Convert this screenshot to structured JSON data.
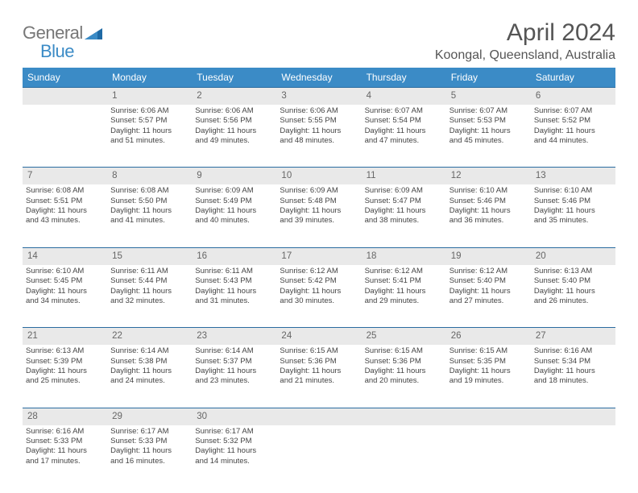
{
  "logo": {
    "general": "General",
    "blue": "Blue"
  },
  "title": "April 2024",
  "location": "Koongal, Queensland, Australia",
  "colors": {
    "header_bg": "#3b8bc6",
    "daynum_bg": "#e9e9e9",
    "rule": "#2a6ca0"
  },
  "day_headers": [
    "Sunday",
    "Monday",
    "Tuesday",
    "Wednesday",
    "Thursday",
    "Friday",
    "Saturday"
  ],
  "weeks": [
    {
      "nums": [
        "",
        "1",
        "2",
        "3",
        "4",
        "5",
        "6"
      ],
      "cells": [
        null,
        {
          "sr": "Sunrise: 6:06 AM",
          "ss": "Sunset: 5:57 PM",
          "d1": "Daylight: 11 hours",
          "d2": "and 51 minutes."
        },
        {
          "sr": "Sunrise: 6:06 AM",
          "ss": "Sunset: 5:56 PM",
          "d1": "Daylight: 11 hours",
          "d2": "and 49 minutes."
        },
        {
          "sr": "Sunrise: 6:06 AM",
          "ss": "Sunset: 5:55 PM",
          "d1": "Daylight: 11 hours",
          "d2": "and 48 minutes."
        },
        {
          "sr": "Sunrise: 6:07 AM",
          "ss": "Sunset: 5:54 PM",
          "d1": "Daylight: 11 hours",
          "d2": "and 47 minutes."
        },
        {
          "sr": "Sunrise: 6:07 AM",
          "ss": "Sunset: 5:53 PM",
          "d1": "Daylight: 11 hours",
          "d2": "and 45 minutes."
        },
        {
          "sr": "Sunrise: 6:07 AM",
          "ss": "Sunset: 5:52 PM",
          "d1": "Daylight: 11 hours",
          "d2": "and 44 minutes."
        }
      ]
    },
    {
      "nums": [
        "7",
        "8",
        "9",
        "10",
        "11",
        "12",
        "13"
      ],
      "cells": [
        {
          "sr": "Sunrise: 6:08 AM",
          "ss": "Sunset: 5:51 PM",
          "d1": "Daylight: 11 hours",
          "d2": "and 43 minutes."
        },
        {
          "sr": "Sunrise: 6:08 AM",
          "ss": "Sunset: 5:50 PM",
          "d1": "Daylight: 11 hours",
          "d2": "and 41 minutes."
        },
        {
          "sr": "Sunrise: 6:09 AM",
          "ss": "Sunset: 5:49 PM",
          "d1": "Daylight: 11 hours",
          "d2": "and 40 minutes."
        },
        {
          "sr": "Sunrise: 6:09 AM",
          "ss": "Sunset: 5:48 PM",
          "d1": "Daylight: 11 hours",
          "d2": "and 39 minutes."
        },
        {
          "sr": "Sunrise: 6:09 AM",
          "ss": "Sunset: 5:47 PM",
          "d1": "Daylight: 11 hours",
          "d2": "and 38 minutes."
        },
        {
          "sr": "Sunrise: 6:10 AM",
          "ss": "Sunset: 5:46 PM",
          "d1": "Daylight: 11 hours",
          "d2": "and 36 minutes."
        },
        {
          "sr": "Sunrise: 6:10 AM",
          "ss": "Sunset: 5:46 PM",
          "d1": "Daylight: 11 hours",
          "d2": "and 35 minutes."
        }
      ]
    },
    {
      "nums": [
        "14",
        "15",
        "16",
        "17",
        "18",
        "19",
        "20"
      ],
      "cells": [
        {
          "sr": "Sunrise: 6:10 AM",
          "ss": "Sunset: 5:45 PM",
          "d1": "Daylight: 11 hours",
          "d2": "and 34 minutes."
        },
        {
          "sr": "Sunrise: 6:11 AM",
          "ss": "Sunset: 5:44 PM",
          "d1": "Daylight: 11 hours",
          "d2": "and 32 minutes."
        },
        {
          "sr": "Sunrise: 6:11 AM",
          "ss": "Sunset: 5:43 PM",
          "d1": "Daylight: 11 hours",
          "d2": "and 31 minutes."
        },
        {
          "sr": "Sunrise: 6:12 AM",
          "ss": "Sunset: 5:42 PM",
          "d1": "Daylight: 11 hours",
          "d2": "and 30 minutes."
        },
        {
          "sr": "Sunrise: 6:12 AM",
          "ss": "Sunset: 5:41 PM",
          "d1": "Daylight: 11 hours",
          "d2": "and 29 minutes."
        },
        {
          "sr": "Sunrise: 6:12 AM",
          "ss": "Sunset: 5:40 PM",
          "d1": "Daylight: 11 hours",
          "d2": "and 27 minutes."
        },
        {
          "sr": "Sunrise: 6:13 AM",
          "ss": "Sunset: 5:40 PM",
          "d1": "Daylight: 11 hours",
          "d2": "and 26 minutes."
        }
      ]
    },
    {
      "nums": [
        "21",
        "22",
        "23",
        "24",
        "25",
        "26",
        "27"
      ],
      "cells": [
        {
          "sr": "Sunrise: 6:13 AM",
          "ss": "Sunset: 5:39 PM",
          "d1": "Daylight: 11 hours",
          "d2": "and 25 minutes."
        },
        {
          "sr": "Sunrise: 6:14 AM",
          "ss": "Sunset: 5:38 PM",
          "d1": "Daylight: 11 hours",
          "d2": "and 24 minutes."
        },
        {
          "sr": "Sunrise: 6:14 AM",
          "ss": "Sunset: 5:37 PM",
          "d1": "Daylight: 11 hours",
          "d2": "and 23 minutes."
        },
        {
          "sr": "Sunrise: 6:15 AM",
          "ss": "Sunset: 5:36 PM",
          "d1": "Daylight: 11 hours",
          "d2": "and 21 minutes."
        },
        {
          "sr": "Sunrise: 6:15 AM",
          "ss": "Sunset: 5:36 PM",
          "d1": "Daylight: 11 hours",
          "d2": "and 20 minutes."
        },
        {
          "sr": "Sunrise: 6:15 AM",
          "ss": "Sunset: 5:35 PM",
          "d1": "Daylight: 11 hours",
          "d2": "and 19 minutes."
        },
        {
          "sr": "Sunrise: 6:16 AM",
          "ss": "Sunset: 5:34 PM",
          "d1": "Daylight: 11 hours",
          "d2": "and 18 minutes."
        }
      ]
    },
    {
      "nums": [
        "28",
        "29",
        "30",
        "",
        "",
        "",
        ""
      ],
      "cells": [
        {
          "sr": "Sunrise: 6:16 AM",
          "ss": "Sunset: 5:33 PM",
          "d1": "Daylight: 11 hours",
          "d2": "and 17 minutes."
        },
        {
          "sr": "Sunrise: 6:17 AM",
          "ss": "Sunset: 5:33 PM",
          "d1": "Daylight: 11 hours",
          "d2": "and 16 minutes."
        },
        {
          "sr": "Sunrise: 6:17 AM",
          "ss": "Sunset: 5:32 PM",
          "d1": "Daylight: 11 hours",
          "d2": "and 14 minutes."
        },
        null,
        null,
        null,
        null
      ]
    }
  ]
}
